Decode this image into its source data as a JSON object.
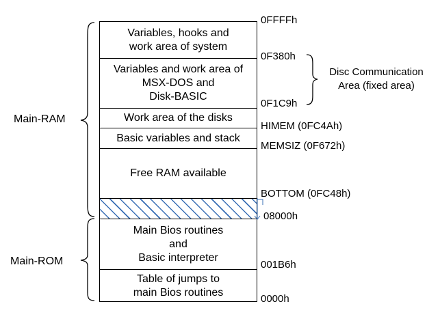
{
  "blocks": [
    {
      "id": "system-vars",
      "text": "Variables, hooks and\nwork area of system"
    },
    {
      "id": "msxdos-vars",
      "text": "Variables and work area of\nMSX-DOS and\nDisk-BASIC"
    },
    {
      "id": "disk-work",
      "text": "Work area of the disks"
    },
    {
      "id": "basic-vars",
      "text": "Basic variables and stack"
    },
    {
      "id": "free-ram",
      "text": "Free RAM available"
    },
    {
      "id": "hatched",
      "text": ""
    },
    {
      "id": "bios-routines",
      "text": "Main Bios routines\nand\nBasic interpreter"
    },
    {
      "id": "jump-table",
      "text": "Table of jumps to\nmain Bios routines"
    }
  ],
  "addresses": {
    "top": "0FFFFh",
    "f380": "0F380h",
    "f1c9": "0F1C9h",
    "himem": "HIMEM (0FC4Ah)",
    "memsiz": "MEMSIZ (0F672h)",
    "bottom": "BOTTOM (0FC48h)",
    "a8000": "08000h",
    "a1b6": "001B6h",
    "a0000": "0000h"
  },
  "regions": {
    "ram": "Main-RAM",
    "rom": "Main-ROM",
    "disc": "Disc Communication\nArea (fixed area)"
  },
  "colors": {
    "hatch": "#3a6fb5",
    "bracket": "#000000"
  }
}
